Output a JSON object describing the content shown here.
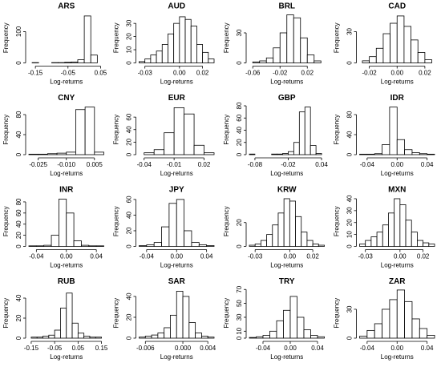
{
  "chart_data": [
    {
      "type": "histogram",
      "title": "ARS",
      "xlabel": "Log-returns",
      "ylabel": "Frequency",
      "bins": [
        -0.16,
        -0.14,
        -0.12,
        -0.1,
        -0.08,
        -0.06,
        -0.04,
        -0.02,
        0,
        0.02,
        0.04
      ],
      "counts": [
        1,
        0,
        0,
        1,
        1,
        2,
        3,
        10,
        150,
        25
      ],
      "xlim": [
        -0.17,
        0.06
      ],
      "ylim": [
        0,
        160
      ],
      "xticks": [
        -0.15,
        -0.05,
        0.05
      ],
      "yticks": [
        0,
        100
      ],
      "color": "#ffffff"
    },
    {
      "type": "histogram",
      "title": "AUD",
      "xlabel": "Log-returns",
      "ylabel": "Frequency",
      "bins": [
        -0.035,
        -0.03,
        -0.025,
        -0.02,
        -0.015,
        -0.01,
        -0.005,
        0,
        0.005,
        0.01,
        0.015,
        0.02,
        0.025,
        0.03
      ],
      "counts": [
        1,
        3,
        6,
        9,
        14,
        22,
        30,
        35,
        33,
        28,
        14,
        8,
        3
      ],
      "xlim": [
        -0.035,
        0.03
      ],
      "ylim": [
        0,
        38
      ],
      "xticks": [
        -0.03,
        {
          "value": 0,
          "label": "0.00"
        },
        0.02
      ],
      "yticks": [
        0,
        10,
        20,
        30
      ],
      "color": "#ffffff"
    },
    {
      "type": "histogram",
      "title": "BRL",
      "xlabel": "Log-returns",
      "ylabel": "Frequency",
      "bins": [
        -0.06,
        -0.05,
        -0.04,
        -0.03,
        -0.02,
        -0.01,
        0,
        0.01,
        0.02,
        0.03,
        0.04
      ],
      "counts": [
        1,
        2,
        5,
        15,
        30,
        48,
        45,
        25,
        8,
        2
      ],
      "xlim": [
        -0.065,
        0.045
      ],
      "ylim": [
        0,
        50
      ],
      "xticks": [
        -0.06,
        -0.02,
        0.02
      ],
      "yticks": [
        0,
        30
      ],
      "color": "#ffffff"
    },
    {
      "type": "histogram",
      "title": "CAD",
      "xlabel": "Log-returns",
      "ylabel": "Frequency",
      "bins": [
        -0.025,
        -0.02,
        -0.015,
        -0.01,
        -0.005,
        0,
        0.005,
        0.01,
        0.015,
        0.02,
        0.025
      ],
      "counts": [
        2,
        6,
        14,
        28,
        38,
        45,
        35,
        22,
        10,
        3
      ],
      "xlim": [
        -0.027,
        0.027
      ],
      "ylim": [
        0,
        48
      ],
      "xticks": [
        -0.02,
        {
          "value": 0,
          "label": "0.00"
        },
        0.02
      ],
      "yticks": [
        0,
        30
      ],
      "color": "#ffffff"
    },
    {
      "type": "histogram",
      "title": "CNY",
      "xlabel": "Log-returns",
      "ylabel": "Frequency",
      "bins": [
        -0.03,
        -0.025,
        -0.02,
        -0.015,
        -0.01,
        -0.005,
        0,
        0.005,
        0.01
      ],
      "counts": [
        1,
        1,
        2,
        3,
        5,
        90,
        95,
        5
      ],
      "xlim": [
        -0.03,
        0.01
      ],
      "ylim": [
        0,
        100
      ],
      "xticks": [
        -0.025,
        {
          "value": -0.01,
          "label": "-0.010"
        },
        0.005
      ],
      "yticks": [
        0,
        40,
        80
      ],
      "color": "#ffffff"
    },
    {
      "type": "histogram",
      "title": "EUR",
      "xlabel": "Log-returns",
      "ylabel": "Frequency",
      "bins": [
        -0.04,
        -0.03,
        -0.02,
        -0.01,
        0,
        0.01,
        0.02,
        0.03
      ],
      "counts": [
        3,
        8,
        35,
        75,
        65,
        15,
        3
      ],
      "xlim": [
        -0.045,
        0.03
      ],
      "ylim": [
        0,
        80
      ],
      "xticks": [
        -0.04,
        -0.01,
        0.02
      ],
      "yticks": [
        0,
        20,
        40,
        60
      ],
      "color": "#ffffff"
    },
    {
      "type": "histogram",
      "title": "GBP",
      "xlabel": "Log-returns",
      "ylabel": "Frequency",
      "bins": [
        -0.09,
        -0.08,
        -0.07,
        -0.06,
        -0.05,
        -0.04,
        -0.03,
        -0.02,
        -0.01,
        0,
        0.01,
        0.02,
        0.03,
        0.04
      ],
      "counts": [
        1,
        0,
        0,
        0,
        1,
        1,
        2,
        5,
        20,
        70,
        78,
        15,
        2
      ],
      "xlim": [
        -0.09,
        0.045
      ],
      "ylim": [
        0,
        82
      ],
      "xticks": [
        -0.08,
        -0.02,
        0.04
      ],
      "yticks": [
        0,
        20,
        40,
        60,
        80
      ],
      "color": "#ffffff"
    },
    {
      "type": "histogram",
      "title": "IDR",
      "xlabel": "Log-returns",
      "ylabel": "Frequency",
      "bins": [
        -0.05,
        -0.04,
        -0.03,
        -0.02,
        -0.01,
        0,
        0.01,
        0.02,
        0.03,
        0.04,
        0.05
      ],
      "counts": [
        1,
        1,
        2,
        20,
        95,
        30,
        10,
        4,
        2,
        1
      ],
      "xlim": [
        -0.05,
        0.05
      ],
      "ylim": [
        0,
        100
      ],
      "xticks": [
        -0.04,
        {
          "value": 0,
          "label": "0.00"
        },
        0.04
      ],
      "yticks": [
        0,
        40,
        80
      ],
      "color": "#ffffff"
    },
    {
      "type": "histogram",
      "title": "INR",
      "xlabel": "Log-returns",
      "ylabel": "Frequency",
      "bins": [
        -0.05,
        -0.04,
        -0.03,
        -0.02,
        -0.01,
        0,
        0.01,
        0.02,
        0.03,
        0.04,
        0.05
      ],
      "counts": [
        1,
        1,
        2,
        20,
        85,
        60,
        10,
        2,
        1,
        1
      ],
      "xlim": [
        -0.05,
        0.05
      ],
      "ylim": [
        0,
        90
      ],
      "xticks": [
        -0.04,
        {
          "value": 0,
          "label": "0.00"
        },
        0.04
      ],
      "yticks": [
        0,
        20,
        40,
        60,
        80
      ],
      "color": "#ffffff"
    },
    {
      "type": "histogram",
      "title": "JPY",
      "xlabel": "Log-returns",
      "ylabel": "Frequency",
      "bins": [
        -0.05,
        -0.04,
        -0.03,
        -0.02,
        -0.01,
        0,
        0.01,
        0.02,
        0.03,
        0.04,
        0.05
      ],
      "counts": [
        1,
        2,
        5,
        25,
        55,
        60,
        20,
        5,
        2,
        1
      ],
      "xlim": [
        -0.05,
        0.05
      ],
      "ylim": [
        0,
        64
      ],
      "xticks": [
        -0.04,
        {
          "value": 0,
          "label": "0.00"
        },
        0.04
      ],
      "yticks": [
        0,
        20,
        40,
        60
      ],
      "color": "#ffffff"
    },
    {
      "type": "histogram",
      "title": "KRW",
      "xlabel": "Log-returns",
      "ylabel": "Frequency",
      "bins": [
        -0.035,
        -0.03,
        -0.025,
        -0.02,
        -0.015,
        -0.01,
        -0.005,
        0,
        0.005,
        0.01,
        0.015,
        0.02,
        0.025,
        0.03
      ],
      "counts": [
        1,
        2,
        5,
        10,
        18,
        28,
        40,
        38,
        25,
        12,
        5,
        2,
        1
      ],
      "xlim": [
        -0.035,
        0.03
      ],
      "ylim": [
        0,
        42
      ],
      "xticks": [
        -0.03,
        {
          "value": 0,
          "label": "0.00"
        },
        0.02
      ],
      "yticks": [
        0,
        20
      ],
      "color": "#ffffff"
    },
    {
      "type": "histogram",
      "title": "MXN",
      "xlabel": "Log-returns",
      "ylabel": "Frequency",
      "bins": [
        -0.035,
        -0.03,
        -0.025,
        -0.02,
        -0.015,
        -0.01,
        -0.005,
        0,
        0.005,
        0.01,
        0.015,
        0.02,
        0.025,
        0.03
      ],
      "counts": [
        2,
        5,
        8,
        12,
        18,
        28,
        40,
        35,
        22,
        12,
        5,
        3,
        2
      ],
      "xlim": [
        -0.035,
        0.03
      ],
      "ylim": [
        0,
        42
      ],
      "xticks": [
        -0.03,
        {
          "value": 0,
          "label": "0.00"
        },
        0.02
      ],
      "yticks": [
        0,
        10,
        20,
        30,
        40
      ],
      "color": "#ffffff"
    },
    {
      "type": "histogram",
      "title": "RUB",
      "xlabel": "Log-returns",
      "ylabel": "Frequency",
      "bins": [
        -0.15,
        -0.125,
        -0.1,
        -0.075,
        -0.05,
        -0.025,
        0,
        0.025,
        0.05,
        0.075,
        0.1,
        0.125,
        0.15
      ],
      "counts": [
        1,
        1,
        2,
        3,
        8,
        30,
        45,
        15,
        5,
        2,
        1,
        1
      ],
      "xlim": [
        -0.16,
        0.16
      ],
      "ylim": [
        0,
        50
      ],
      "xticks": [
        -0.15,
        -0.05,
        0.05,
        0.15
      ],
      "yticks": [
        0,
        20,
        40
      ],
      "color": "#ffffff"
    },
    {
      "type": "histogram",
      "title": "SAR",
      "xlabel": "Log-returns",
      "ylabel": "Frequency",
      "bins": [
        -0.007,
        -0.006,
        -0.005,
        -0.004,
        -0.003,
        -0.002,
        -0.001,
        0,
        0.001,
        0.002,
        0.003,
        0.004,
        0.005
      ],
      "counts": [
        1,
        2,
        3,
        5,
        10,
        22,
        45,
        40,
        15,
        5,
        2,
        1
      ],
      "xlim": [
        -0.007,
        0.005
      ],
      "ylim": [
        0,
        48
      ],
      "xticks": [
        -0.006,
        {
          "value": 0,
          "label": "0.000"
        },
        0.004
      ],
      "yticks": [
        0,
        20,
        40
      ],
      "color": "#ffffff"
    },
    {
      "type": "histogram",
      "title": "TRY",
      "xlabel": "Log-returns",
      "ylabel": "Frequency",
      "bins": [
        -0.06,
        -0.05,
        -0.04,
        -0.03,
        -0.02,
        -0.01,
        0,
        0.01,
        0.02,
        0.03,
        0.04,
        0.05
      ],
      "counts": [
        1,
        2,
        4,
        10,
        25,
        40,
        60,
        30,
        12,
        4,
        2
      ],
      "xlim": [
        -0.06,
        0.05
      ],
      "ylim": [
        0,
        72
      ],
      "xticks": [
        -0.04,
        {
          "value": 0,
          "label": "0.00"
        },
        0.04
      ],
      "yticks": [
        0,
        10,
        30,
        50,
        70
      ],
      "color": "#ffffff"
    },
    {
      "type": "histogram",
      "title": "ZAR",
      "xlabel": "Log-returns",
      "ylabel": "Frequency",
      "bins": [
        -0.05,
        -0.04,
        -0.03,
        -0.02,
        -0.01,
        0,
        0.01,
        0.02,
        0.03,
        0.04,
        0.05
      ],
      "counts": [
        2,
        8,
        15,
        30,
        40,
        50,
        38,
        20,
        10,
        3
      ],
      "xlim": [
        -0.05,
        0.05
      ],
      "ylim": [
        0,
        52
      ],
      "xticks": [
        -0.04,
        {
          "value": 0,
          "label": "0.00"
        },
        0.04
      ],
      "yticks": [
        0,
        30
      ],
      "color": "#ffffff"
    }
  ]
}
